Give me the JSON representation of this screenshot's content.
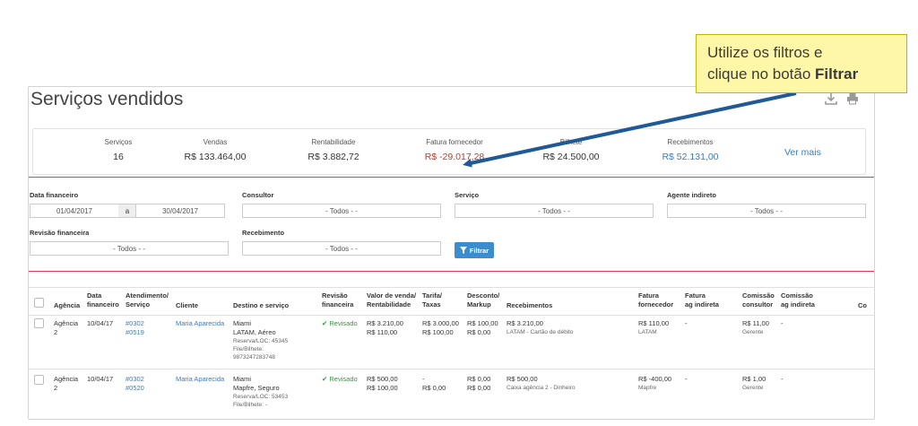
{
  "page": {
    "title": "Serviços vendidos"
  },
  "summary": {
    "stats": [
      {
        "label": "Serviços",
        "value": "16"
      },
      {
        "label": "Vendas",
        "value": "R$ 133.464,00"
      },
      {
        "label": "Rentabilidade",
        "value": "R$ 3.882,72"
      },
      {
        "label": "Fatura fornecedor",
        "value": "R$ -29.017,28"
      },
      {
        "label": "Bilhete",
        "value": "R$ 24.500,00"
      },
      {
        "label": "Recebimentos",
        "value": "R$ 52.131,00"
      }
    ],
    "ver_mais": "Ver mais"
  },
  "filters": {
    "data_financeiro_label": "Data financeiro",
    "date_from": "01/04/2017",
    "date_sep": "a",
    "date_to": "30/04/2017",
    "consultor_label": "Consultor",
    "consultor_value": "- Todos - -",
    "servico_label": "Serviço",
    "servico_value": "- Todos - -",
    "agente_label": "Agente indireto",
    "agente_value": "- Todos - -",
    "revisao_label": "Revisão financeira",
    "revisao_value": "- Todos - -",
    "recebimento_label": "Recebimento",
    "recebimento_value": "- Todos - -",
    "filtrar_label": "Filtrar"
  },
  "table": {
    "headers": {
      "agencia": "Agência",
      "data_financeiro": [
        "Data",
        "financeiro"
      ],
      "atendimento": [
        "Atendimento/",
        "Serviço"
      ],
      "cliente": "Cliente",
      "destino": "Destino e serviço",
      "revisao": [
        "Revisão",
        "financeira"
      ],
      "valor": [
        "Valor de venda/",
        "Rentabilidade"
      ],
      "tarifa": [
        "Tarifa/",
        "Taxas"
      ],
      "desconto": [
        "Desconto/",
        "Markup"
      ],
      "recebimentos": "Recebimentos",
      "fatura_fornecedor": [
        "Fatura",
        "fornecedor"
      ],
      "fatura_ag": [
        "Fatura",
        "ag indireta"
      ],
      "comissao_consultor": [
        "Comissão",
        "consultor"
      ],
      "comissao_ag": [
        "Comissão",
        "ag indireta"
      ],
      "extra": "Co"
    },
    "rows": [
      {
        "agencia": [
          "Agência",
          "2"
        ],
        "data": "10/04/17",
        "atendimento": [
          "#0302",
          "#0519"
        ],
        "cliente": "Maria Aparecida",
        "destino": [
          "Miami",
          "LATAM, Aéreo"
        ],
        "destino_sub": [
          "Reserva/LOC: 45345",
          "File/Bilhete:",
          "9873247283748"
        ],
        "revisao": "Revisado",
        "valor": [
          "R$ 3.210,00",
          "R$ 110,00"
        ],
        "tarifa": [
          "R$ 3.000,00",
          "R$ 100,00"
        ],
        "desconto": [
          "R$ 100,00",
          "R$ 0,00"
        ],
        "recebimentos": "R$ 3.210,00",
        "recebimentos_sub": "LATAM - Cartão de débito",
        "fatura_fornecedor": "R$ 110,00",
        "fatura_fornecedor_sub": "LATAM",
        "fatura_ag": "-",
        "comissao_consultor": "R$ 11,00",
        "comissao_consultor_sub": "Gerente",
        "comissao_ag": "-"
      },
      {
        "agencia": [
          "Agência",
          "2"
        ],
        "data": "10/04/17",
        "atendimento": [
          "#0302",
          "#0520"
        ],
        "cliente": "Maria Aparecida",
        "destino": [
          "Miami",
          "Mapfre, Seguro"
        ],
        "destino_sub": [
          "Reserva/LOC: 53453",
          "File/Bilhete: -"
        ],
        "revisao": "Revisado",
        "valor": [
          "R$ 500,00",
          "R$ 100,00"
        ],
        "tarifa": [
          "-",
          "R$ 0,00"
        ],
        "desconto": [
          "R$ 0,00",
          "R$ 0,00"
        ],
        "recebimentos": "R$ 500,00",
        "recebimentos_sub": "Caixa agência 2 - Dinheiro",
        "fatura_fornecedor": "R$ -400,00",
        "fatura_fornecedor_sub": "Mapfre",
        "fatura_ag": "-",
        "comissao_consultor": "R$ 1,00",
        "comissao_consultor_sub": "Gerente",
        "comissao_ag": "-"
      }
    ]
  },
  "callout": {
    "line1": "Utilize os filtros e",
    "line2_prefix": "clique no botão ",
    "line2_bold": "Filtrar"
  },
  "icons": [
    "download-icon",
    "print-icon",
    "filter-icon",
    "check-icon"
  ],
  "colors": {
    "accent": "#3a8dd1",
    "filter_border": "#e23b4a",
    "callout_bg": "#fff7a8",
    "arrow": "#1f5a96"
  }
}
